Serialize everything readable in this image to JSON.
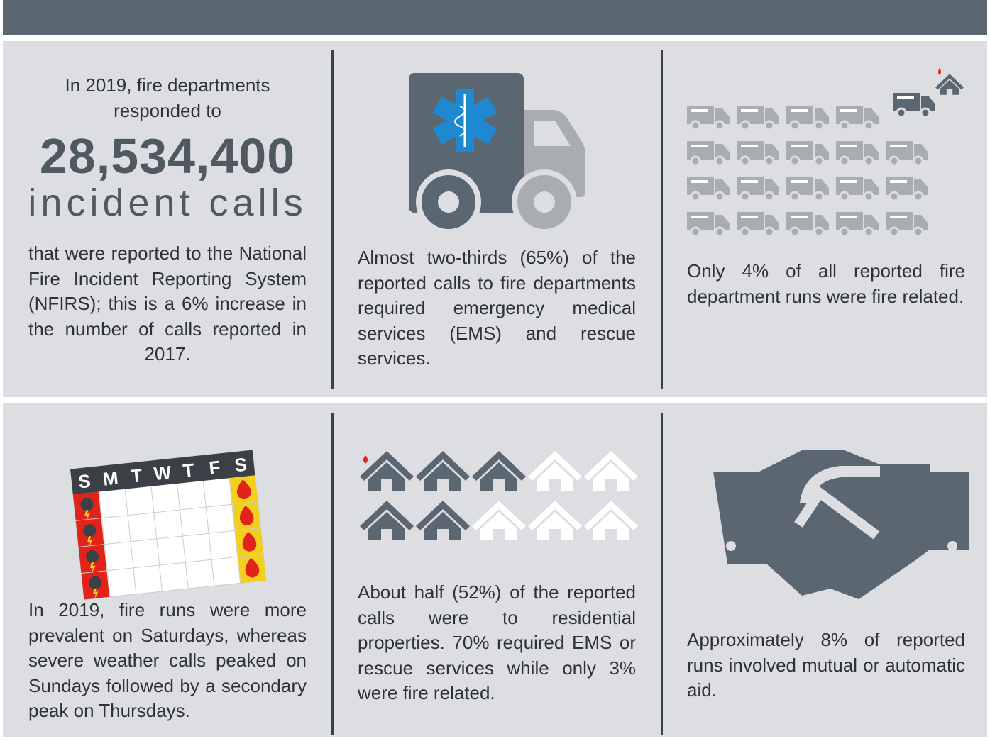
{
  "panels": [
    {
      "intro": "In 2019, fire departments responded to",
      "number": "28,534,400",
      "unit": "incident calls",
      "text": "that were reported to the National Fire Incident Reporting System (NFIRS); this is a 6% increase in the number of calls reported in 2017."
    },
    {
      "text": "Almost two-thirds (65%) of the reported calls to fire departments required emergency medical services (EMS) and rescue services."
    },
    {
      "text": "Only 4% of all reported fire department runs were fire related."
    },
    {
      "text": "In 2019, fire runs were more prevalent on Saturdays, whereas severe weather calls peaked on Sundays followed by a secondary peak on Thursdays."
    },
    {
      "text": "About half (52%) of the reported calls were to residential properties. 70% required EMS or rescue services while only 3% were fire related."
    },
    {
      "text": "Approximately 8% of reported runs involved mutual or automatic aid."
    }
  ],
  "calendar": {
    "days": [
      "S",
      "M",
      "T",
      "W",
      "T",
      "F",
      "S"
    ]
  }
}
